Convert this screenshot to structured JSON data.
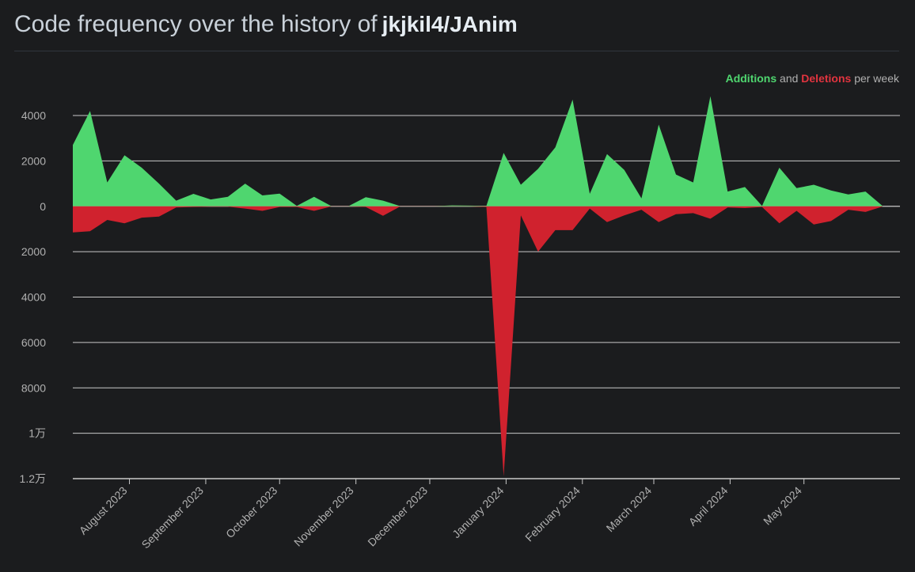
{
  "header": {
    "title_prefix": "Code frequency over the history of",
    "repo": "jkjkil4/JAnim"
  },
  "legend": {
    "additions": "Additions",
    "joiner": "and",
    "deletions": "Deletions",
    "suffix": "per week"
  },
  "colors": {
    "additions": "#4fd66f",
    "deletions": "#d0222e",
    "grid": "#c9c9c9",
    "tick_text": "#b0b0b0",
    "background": "#1b1c1e"
  },
  "chart_data": {
    "type": "area",
    "title": "Code frequency over the history of jkjkil4/JAnim",
    "y_range": [
      -12000,
      4000
    ],
    "y_ticks": [
      4000,
      2000,
      0,
      -2000,
      -4000,
      -6000,
      -8000,
      -10000,
      -12000
    ],
    "y_tick_labels": [
      "4000",
      "2000",
      "0",
      "2000",
      "4000",
      "6000",
      "8000",
      "1万",
      "1.2万"
    ],
    "x_tick_labels": [
      "August 2023",
      "September 2023",
      "October 2023",
      "November 2023",
      "December 2023",
      "January 2024",
      "February 2024",
      "March 2024",
      "April 2024",
      "May 2024"
    ],
    "x_start": "2023-07-09",
    "x_end": "2024-06-09",
    "series": [
      {
        "name": "Additions",
        "color": "#4fd66f",
        "points": [
          [
            "2023-07-09",
            2700
          ],
          [
            "2023-07-16",
            4200
          ],
          [
            "2023-07-23",
            1050
          ],
          [
            "2023-07-30",
            2250
          ],
          [
            "2023-08-06",
            1700
          ],
          [
            "2023-08-13",
            1000
          ],
          [
            "2023-08-20",
            250
          ],
          [
            "2023-08-27",
            550
          ],
          [
            "2023-09-03",
            300
          ],
          [
            "2023-09-10",
            420
          ],
          [
            "2023-09-17",
            1000
          ],
          [
            "2023-09-24",
            480
          ],
          [
            "2023-10-01",
            560
          ],
          [
            "2023-10-08",
            20
          ],
          [
            "2023-10-15",
            420
          ],
          [
            "2023-10-22",
            10
          ],
          [
            "2023-10-29",
            10
          ],
          [
            "2023-11-05",
            400
          ],
          [
            "2023-11-12",
            250
          ],
          [
            "2023-11-19",
            10
          ],
          [
            "2023-11-26",
            10
          ],
          [
            "2023-12-03",
            10
          ],
          [
            "2023-12-10",
            40
          ],
          [
            "2023-12-17",
            30
          ],
          [
            "2023-12-24",
            20
          ],
          [
            "2023-12-31",
            2350
          ],
          [
            "2024-01-07",
            950
          ],
          [
            "2024-01-14",
            1650
          ],
          [
            "2024-01-21",
            2600
          ],
          [
            "2024-01-28",
            4700
          ],
          [
            "2024-02-04",
            550
          ],
          [
            "2024-02-11",
            2300
          ],
          [
            "2024-02-18",
            1600
          ],
          [
            "2024-02-25",
            350
          ],
          [
            "2024-03-03",
            3600
          ],
          [
            "2024-03-10",
            1400
          ],
          [
            "2024-03-17",
            1050
          ],
          [
            "2024-03-24",
            4850
          ],
          [
            "2024-03-31",
            650
          ],
          [
            "2024-04-07",
            850
          ],
          [
            "2024-04-14",
            20
          ],
          [
            "2024-04-21",
            1700
          ],
          [
            "2024-04-28",
            800
          ],
          [
            "2024-05-05",
            950
          ],
          [
            "2024-05-12",
            700
          ],
          [
            "2024-05-19",
            520
          ],
          [
            "2024-05-26",
            650
          ],
          [
            "2024-06-02",
            10
          ]
        ]
      },
      {
        "name": "Deletions",
        "color": "#d0222e",
        "points": [
          [
            "2023-07-09",
            -1150
          ],
          [
            "2023-07-16",
            -1100
          ],
          [
            "2023-07-23",
            -600
          ],
          [
            "2023-07-30",
            -750
          ],
          [
            "2023-08-06",
            -500
          ],
          [
            "2023-08-13",
            -450
          ],
          [
            "2023-08-20",
            -50
          ],
          [
            "2023-08-27",
            -30
          ],
          [
            "2023-09-03",
            -20
          ],
          [
            "2023-09-10",
            -20
          ],
          [
            "2023-09-17",
            -100
          ],
          [
            "2023-09-24",
            -200
          ],
          [
            "2023-10-01",
            -30
          ],
          [
            "2023-10-08",
            -30
          ],
          [
            "2023-10-15",
            -200
          ],
          [
            "2023-10-22",
            -10
          ],
          [
            "2023-10-29",
            -10
          ],
          [
            "2023-11-05",
            -30
          ],
          [
            "2023-11-12",
            -420
          ],
          [
            "2023-11-19",
            -10
          ],
          [
            "2023-11-26",
            -10
          ],
          [
            "2023-12-03",
            -10
          ],
          [
            "2023-12-10",
            -10
          ],
          [
            "2023-12-17",
            -10
          ],
          [
            "2023-12-24",
            -30
          ],
          [
            "2023-12-31",
            -11900
          ],
          [
            "2024-01-07",
            -400
          ],
          [
            "2024-01-14",
            -2000
          ],
          [
            "2024-01-21",
            -1050
          ],
          [
            "2024-01-28",
            -1050
          ],
          [
            "2024-02-04",
            -100
          ],
          [
            "2024-02-11",
            -700
          ],
          [
            "2024-02-18",
            -400
          ],
          [
            "2024-02-25",
            -150
          ],
          [
            "2024-03-03",
            -700
          ],
          [
            "2024-03-10",
            -350
          ],
          [
            "2024-03-17",
            -300
          ],
          [
            "2024-03-24",
            -550
          ],
          [
            "2024-03-31",
            -50
          ],
          [
            "2024-04-07",
            -80
          ],
          [
            "2024-04-14",
            -30
          ],
          [
            "2024-04-21",
            -750
          ],
          [
            "2024-04-28",
            -200
          ],
          [
            "2024-05-05",
            -800
          ],
          [
            "2024-05-12",
            -650
          ],
          [
            "2024-05-19",
            -150
          ],
          [
            "2024-05-26",
            -250
          ],
          [
            "2024-06-02",
            -10
          ]
        ]
      }
    ]
  }
}
